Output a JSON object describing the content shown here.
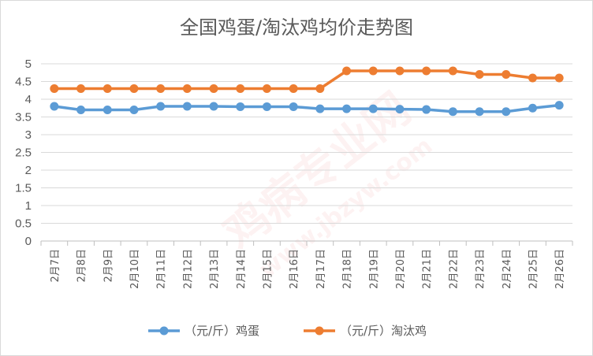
{
  "chart_data": {
    "type": "line",
    "title": "全国鸡蛋/淘汰鸡均价走势图",
    "categories": [
      "2月7日",
      "2月8日",
      "2月9日",
      "2月10日",
      "2月11日",
      "2月12日",
      "2月13日",
      "2月14日",
      "2月15日",
      "2月16日",
      "2月17日",
      "2月18日",
      "2月19日",
      "2月20日",
      "2月21日",
      "2月22日",
      "2月23日",
      "2月24日",
      "2月25日",
      "2月26日"
    ],
    "series": [
      {
        "name": "（元/斤）鸡蛋",
        "color": "#5b9bd5",
        "values": [
          3.8,
          3.7,
          3.7,
          3.7,
          3.8,
          3.8,
          3.8,
          3.79,
          3.79,
          3.79,
          3.73,
          3.73,
          3.73,
          3.72,
          3.71,
          3.65,
          3.65,
          3.65,
          3.75,
          3.83
        ]
      },
      {
        "name": "（元/斤）淘汰鸡",
        "color": "#ed7d31",
        "values": [
          4.3,
          4.3,
          4.3,
          4.3,
          4.3,
          4.3,
          4.3,
          4.3,
          4.3,
          4.3,
          4.3,
          4.8,
          4.8,
          4.8,
          4.8,
          4.8,
          4.7,
          4.7,
          4.6,
          4.6
        ]
      }
    ],
    "yticks": [
      "0",
      "0.5",
      "1",
      "1.5",
      "2",
      "2.5",
      "3",
      "3.5",
      "4",
      "4.5",
      "5"
    ],
    "ylim": [
      0,
      5
    ],
    "grid": true,
    "legend_position": "bottom"
  },
  "watermark": {
    "brand": "鸡病专业网",
    "url": "www.jbzyw.com"
  }
}
